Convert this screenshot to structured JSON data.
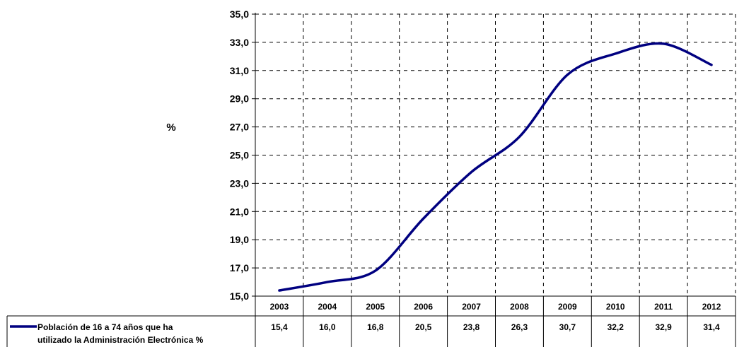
{
  "chart_data": {
    "type": "line",
    "ylabel": "%",
    "ylim": [
      15.0,
      35.0
    ],
    "yticks": [
      "15,0",
      "17,0",
      "19,0",
      "21,0",
      "23,0",
      "25,0",
      "27,0",
      "29,0",
      "31,0",
      "33,0",
      "35,0"
    ],
    "categories": [
      "2003",
      "2004",
      "2005",
      "2006",
      "2007",
      "2008",
      "2009",
      "2010",
      "2011",
      "2012"
    ],
    "grid": true,
    "legend_placement": "bottom-left (data table)",
    "series": [
      {
        "name": "Población de 16 a 74 años que ha utilizado la Administración Electrónica %",
        "name_lines": [
          "Población de 16 a 74 años que ha",
          "utilizado la Administración Electrónica %"
        ],
        "values": [
          15.4,
          16.0,
          16.8,
          20.5,
          23.8,
          26.3,
          30.7,
          32.2,
          32.9,
          31.4
        ],
        "labels": [
          "15,4",
          "16,0",
          "16,8",
          "20,5",
          "23,8",
          "26,3",
          "30,7",
          "32,2",
          "32,9",
          "31,4"
        ],
        "color": "#000080"
      }
    ]
  }
}
